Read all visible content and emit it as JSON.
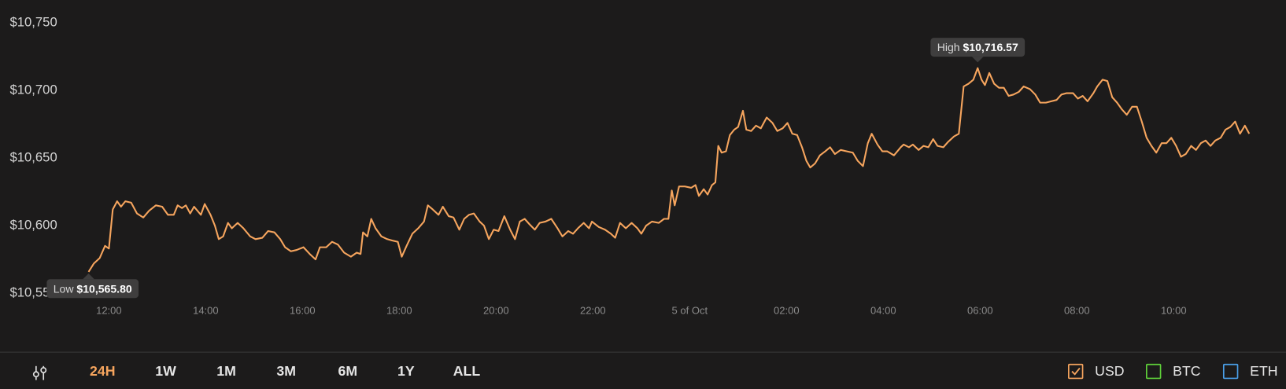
{
  "chart_data": {
    "type": "line",
    "x": [
      11.58,
      11.69,
      11.81,
      11.92,
      12.0,
      12.08,
      12.17,
      12.25,
      12.34,
      12.46,
      12.58,
      12.71,
      12.83,
      12.97,
      13.1,
      13.22,
      13.34,
      13.42,
      13.51,
      13.59,
      13.68,
      13.76,
      13.9,
      13.98,
      14.1,
      14.19,
      14.27,
      14.36,
      14.46,
      14.54,
      14.66,
      14.78,
      14.92,
      15.03,
      15.17,
      15.29,
      15.42,
      15.54,
      15.64,
      15.76,
      15.88,
      16.02,
      16.15,
      16.27,
      16.36,
      16.49,
      16.61,
      16.73,
      16.86,
      17.0,
      17.12,
      17.2,
      17.25,
      17.34,
      17.42,
      17.51,
      17.63,
      17.75,
      17.85,
      17.97,
      18.05,
      18.15,
      18.27,
      18.39,
      18.51,
      18.59,
      18.69,
      18.81,
      18.9,
      19.02,
      19.12,
      19.24,
      19.34,
      19.44,
      19.54,
      19.66,
      19.75,
      19.85,
      19.95,
      20.05,
      20.17,
      20.29,
      20.39,
      20.49,
      20.59,
      20.69,
      20.8,
      20.9,
      21.02,
      21.14,
      21.27,
      21.37,
      21.49,
      21.59,
      21.69,
      21.81,
      21.92,
      21.98,
      22.12,
      22.25,
      22.37,
      22.46,
      22.56,
      22.68,
      22.8,
      22.92,
      23.0,
      23.1,
      23.22,
      23.36,
      23.47,
      23.56,
      23.63,
      23.69,
      23.78,
      23.9,
      24.03,
      24.12,
      24.19,
      24.29,
      24.37,
      24.46,
      24.53,
      24.59,
      24.66,
      24.75,
      24.83,
      24.92,
      25.0,
      25.1,
      25.17,
      25.27,
      25.37,
      25.47,
      25.59,
      25.71,
      25.81,
      25.92,
      26.02,
      26.12,
      26.22,
      26.32,
      26.41,
      26.49,
      26.59,
      26.69,
      26.8,
      26.9,
      27.0,
      27.12,
      27.24,
      27.37,
      27.47,
      27.58,
      27.68,
      27.76,
      27.88,
      27.98,
      28.08,
      28.22,
      28.36,
      28.42,
      28.53,
      28.61,
      28.73,
      28.83,
      28.93,
      29.03,
      29.12,
      29.24,
      29.34,
      29.46,
      29.56,
      29.66,
      29.76,
      29.86,
      29.95,
      30.03,
      30.1,
      30.19,
      30.29,
      30.39,
      30.49,
      30.59,
      30.69,
      30.8,
      30.9,
      31.03,
      31.14,
      31.24,
      31.36,
      31.47,
      31.58,
      31.68,
      31.78,
      31.92,
      32.02,
      32.12,
      32.22,
      32.34,
      32.42,
      32.53,
      32.63,
      32.73,
      32.83,
      32.93,
      33.03,
      33.14,
      33.24,
      33.34,
      33.44,
      33.54,
      33.64,
      33.75,
      33.85,
      33.95,
      34.05,
      34.15,
      34.25,
      34.36,
      34.46,
      34.56,
      34.66,
      34.76,
      34.86,
      34.97,
      35.07,
      35.17,
      35.27,
      35.37,
      35.47,
      35.56
    ],
    "series": [
      {
        "name": "USD",
        "color": "#f6a55e",
        "values": [
          10565.8,
          10572,
          10576,
          10585,
          10583,
          10612,
          10618,
          10614,
          10618,
          10617,
          10609,
          10606,
          10611,
          10615,
          10614,
          10608,
          10608,
          10615,
          10613,
          10615,
          10609,
          10614,
          10608,
          10616,
          10608,
          10600,
          10590,
          10592,
          10602,
          10598,
          10602,
          10598,
          10592,
          10590,
          10591,
          10596,
          10595,
          10590,
          10584,
          10581,
          10582,
          10584,
          10579,
          10575,
          10584,
          10584,
          10588,
          10586,
          10580,
          10577,
          10580,
          10579,
          10595,
          10592,
          10605,
          10598,
          10592,
          10590,
          10589,
          10588,
          10577,
          10585,
          10594,
          10598,
          10603,
          10615,
          10612,
          10608,
          10614,
          10607,
          10606,
          10597,
          10605,
          10608,
          10609,
          10603,
          10600,
          10590,
          10597,
          10596,
          10607,
          10597,
          10590,
          10603,
          10605,
          10601,
          10597,
          10602,
          10603,
          10605,
          10598,
          10592,
          10596,
          10594,
          10598,
          10602,
          10598,
          10603,
          10599,
          10597,
          10594,
          10591,
          10602,
          10598,
          10602,
          10598,
          10594,
          10600,
          10603,
          10602,
          10605,
          10605,
          10626,
          10615,
          10629,
          10629,
          10628,
          10630,
          10622,
          10627,
          10623,
          10630,
          10632,
          10659,
          10654,
          10655,
          10667,
          10671,
          10673,
          10685,
          10671,
          10670,
          10674,
          10672,
          10680,
          10676,
          10670,
          10672,
          10676,
          10668,
          10667,
          10658,
          10648,
          10643,
          10646,
          10652,
          10655,
          10658,
          10653,
          10656,
          10655,
          10654,
          10648,
          10644,
          10661,
          10668,
          10660,
          10655,
          10655,
          10652,
          10658,
          10660,
          10658,
          10660,
          10656,
          10659,
          10658,
          10664,
          10659,
          10658,
          10662,
          10666,
          10668,
          10703,
          10705,
          10708,
          10716.57,
          10708,
          10704,
          10713,
          10705,
          10702,
          10702,
          10696,
          10697,
          10699,
          10703,
          10701,
          10697,
          10691,
          10691,
          10692,
          10693,
          10697,
          10698,
          10698,
          10694,
          10696,
          10692,
          10698,
          10703,
          10708,
          10707,
          10695,
          10691,
          10686,
          10682,
          10688,
          10688,
          10677,
          10665,
          10659,
          10654,
          10661,
          10661,
          10665,
          10659,
          10651,
          10653,
          10659,
          10656,
          10661,
          10663,
          10659,
          10663,
          10665,
          10671,
          10673,
          10677,
          10668,
          10674,
          10668
        ]
      }
    ],
    "xlim": [
      9.75,
      36.32
    ],
    "xticks": [
      {
        "value": 12,
        "label": "12:00"
      },
      {
        "value": 14,
        "label": "14:00"
      },
      {
        "value": 16,
        "label": "16:00"
      },
      {
        "value": 18,
        "label": "18:00"
      },
      {
        "value": 20,
        "label": "20:00"
      },
      {
        "value": 22,
        "label": "22:00"
      },
      {
        "value": 24,
        "label": "5 of Oct"
      },
      {
        "value": 26,
        "label": "02:00"
      },
      {
        "value": 28,
        "label": "04:00"
      },
      {
        "value": 30,
        "label": "06:00"
      },
      {
        "value": 32,
        "label": "08:00"
      },
      {
        "value": 34,
        "label": "10:00"
      }
    ],
    "ylim": [
      10550,
      10750
    ],
    "yticks": [
      {
        "value": 10550,
        "label": "$10,550"
      },
      {
        "value": 10600,
        "label": "$10,600"
      },
      {
        "value": 10650,
        "label": "$10,650"
      },
      {
        "value": 10700,
        "label": "$10,700"
      },
      {
        "value": 10750,
        "label": "$10,750"
      }
    ],
    "grid": false,
    "annotations": [
      {
        "text": "High",
        "x": 29.95,
        "value": 10716.57,
        "value_label": "$10,716.57",
        "placement": "above"
      },
      {
        "text": "Low",
        "x": 11.58,
        "value": 10565.8,
        "value_label": "$10,565.80",
        "placement": "below"
      }
    ]
  },
  "ranges": [
    "24H",
    "1W",
    "1M",
    "3M",
    "6M",
    "1Y",
    "ALL"
  ],
  "active_range": 0,
  "active_color": "#f6a55e",
  "other_currencies": [
    {
      "label": "BTC",
      "color": "#5fd13a"
    },
    {
      "label": "ETH",
      "color": "#4a9fe8"
    }
  ]
}
